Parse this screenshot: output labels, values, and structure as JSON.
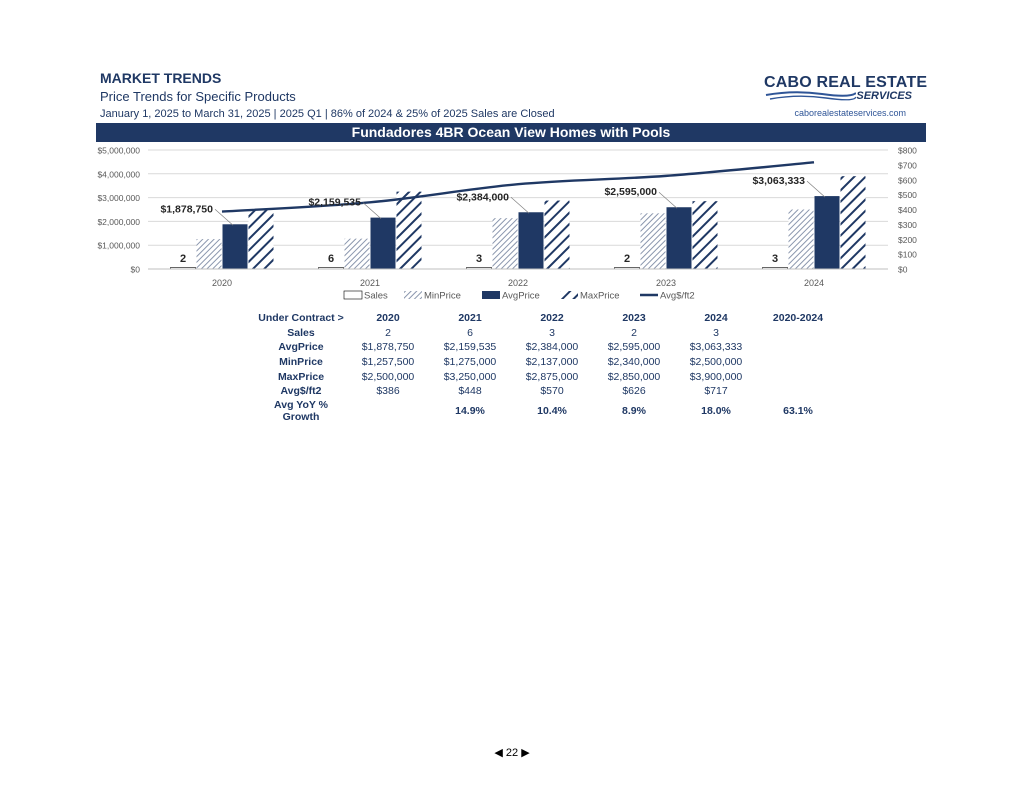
{
  "header": {
    "title": "MARKET TRENDS",
    "subtitle": "Price Trends for Specific Products",
    "period": "January 1, 2025 to March 31, 2025 | 2025 Q1 | 86% of 2024 & 25% of 2025 Sales are Closed"
  },
  "logo": {
    "line1": "CABO REAL ESTATE",
    "line2": "SERVICES",
    "url": "caborealestateservices.com"
  },
  "banner": "Fundadores 4BR Ocean View Homes with Pools",
  "colors": {
    "navy": "#1f3864",
    "grid": "#d9d9d9",
    "hatch": "#8a96ad"
  },
  "chart_data": {
    "type": "bar",
    "categories": [
      "2020",
      "2021",
      "2022",
      "2023",
      "2024"
    ],
    "series": [
      {
        "name": "Sales",
        "values": [
          2,
          6,
          3,
          2,
          3
        ],
        "style": "outline"
      },
      {
        "name": "MinPrice",
        "values": [
          1257500,
          1275000,
          2137000,
          2340000,
          2500000
        ],
        "style": "fine-hatch"
      },
      {
        "name": "AvgPrice",
        "values": [
          1878750,
          2159535,
          2384000,
          2595000,
          3063333
        ],
        "style": "solid-navy"
      },
      {
        "name": "MaxPrice",
        "values": [
          2500000,
          3250000,
          2875000,
          2850000,
          3900000
        ],
        "style": "wide-hatch"
      },
      {
        "name": "Avg$/ft2",
        "values": [
          386,
          448,
          570,
          626,
          717
        ],
        "style": "line",
        "axis": "right"
      }
    ],
    "sales_labels": [
      "2",
      "6",
      "3",
      "2",
      "3"
    ],
    "avg_labels": [
      "$1,878,750",
      "$2,159,535",
      "$2,384,000",
      "$2,595,000",
      "$3,063,333"
    ],
    "ylim": [
      0,
      5000000
    ],
    "y_ticks": [
      "$0",
      "$1,000,000",
      "$2,000,000",
      "$3,000,000",
      "$4,000,000",
      "$5,000,000"
    ],
    "y2lim": [
      0,
      800
    ],
    "y2_ticks": [
      "$0",
      "$100",
      "$200",
      "$300",
      "$400",
      "$500",
      "$600",
      "$700",
      "$800"
    ],
    "grid": true,
    "legend": "bottom"
  },
  "table": {
    "header_label": "Under Contract >",
    "columns": [
      "2020",
      "2021",
      "2022",
      "2023",
      "2024",
      "2020-2024"
    ],
    "rows": [
      {
        "label": "Sales",
        "cells": [
          "2",
          "6",
          "3",
          "2",
          "3",
          ""
        ]
      },
      {
        "label": "AvgPrice",
        "cells": [
          "$1,878,750",
          "$2,159,535",
          "$2,384,000",
          "$2,595,000",
          "$3,063,333",
          ""
        ]
      },
      {
        "label": "MinPrice",
        "cells": [
          "$1,257,500",
          "$1,275,000",
          "$2,137,000",
          "$2,340,000",
          "$2,500,000",
          ""
        ]
      },
      {
        "label": "MaxPrice",
        "cells": [
          "$2,500,000",
          "$3,250,000",
          "$2,875,000",
          "$2,850,000",
          "$3,900,000",
          ""
        ]
      },
      {
        "label": "Avg$/ft2",
        "cells": [
          "$386",
          "$448",
          "$570",
          "$626",
          "$717",
          ""
        ]
      }
    ],
    "growth": {
      "label": "Avg YoY % Growth",
      "cells": [
        "",
        "14.9%",
        "10.4%",
        "8.9%",
        "18.0%",
        "63.1%"
      ]
    }
  },
  "pager": {
    "page": "22"
  }
}
